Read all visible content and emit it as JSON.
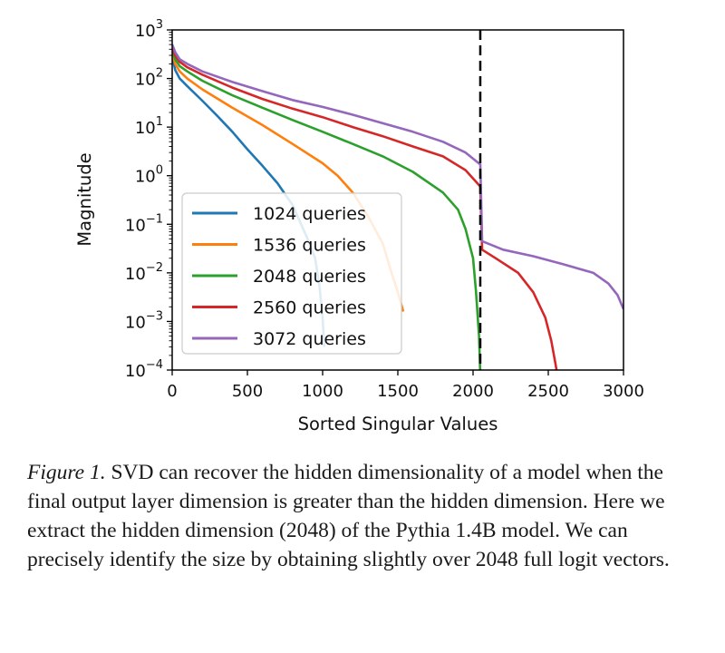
{
  "chart_data": {
    "type": "line",
    "xlabel": "Sorted Singular Values",
    "ylabel": "Magnitude",
    "yscale": "log",
    "xlim": [
      0,
      3000
    ],
    "ylim": [
      0.0001,
      1000
    ],
    "xticks": [
      "0",
      "500",
      "1000",
      "1500",
      "2000",
      "2500",
      "3000"
    ],
    "xtick_values": [
      0,
      500,
      1000,
      1500,
      2000,
      2500,
      3000
    ],
    "ytick_exponents": [
      3,
      2,
      1,
      0,
      -1,
      -2,
      -3,
      -4
    ],
    "grid": false,
    "legend_position": "lower-left",
    "vline": {
      "x": 2048,
      "style": "dashed",
      "color": "#000000"
    },
    "series": [
      {
        "name": "1024 queries",
        "color": "#1f77b4",
        "points": [
          [
            0,
            300
          ],
          [
            20,
            150
          ],
          [
            50,
            100
          ],
          [
            100,
            70
          ],
          [
            200,
            35
          ],
          [
            300,
            17
          ],
          [
            400,
            8
          ],
          [
            500,
            3.5
          ],
          [
            600,
            1.6
          ],
          [
            700,
            0.7
          ],
          [
            800,
            0.25
          ],
          [
            900,
            0.05
          ],
          [
            950,
            0.02
          ],
          [
            980,
            0.005
          ],
          [
            1000,
            0.0012
          ],
          [
            1010,
            0.0003
          ]
        ]
      },
      {
        "name": "1536 queries",
        "color": "#ff7f0e",
        "points": [
          [
            0,
            350
          ],
          [
            20,
            200
          ],
          [
            50,
            140
          ],
          [
            100,
            100
          ],
          [
            200,
            60
          ],
          [
            400,
            25
          ],
          [
            600,
            11
          ],
          [
            800,
            4.5
          ],
          [
            1000,
            1.8
          ],
          [
            1100,
            1.0
          ],
          [
            1200,
            0.45
          ],
          [
            1300,
            0.15
          ],
          [
            1400,
            0.04
          ],
          [
            1450,
            0.012
          ],
          [
            1500,
            0.004
          ],
          [
            1536,
            0.0016
          ]
        ]
      },
      {
        "name": "2048 queries",
        "color": "#2ca02c",
        "points": [
          [
            0,
            400
          ],
          [
            20,
            250
          ],
          [
            50,
            180
          ],
          [
            100,
            140
          ],
          [
            200,
            90
          ],
          [
            400,
            45
          ],
          [
            600,
            25
          ],
          [
            800,
            14
          ],
          [
            1000,
            8
          ],
          [
            1200,
            4.5
          ],
          [
            1400,
            2.5
          ],
          [
            1600,
            1.2
          ],
          [
            1800,
            0.45
          ],
          [
            1900,
            0.2
          ],
          [
            1950,
            0.08
          ],
          [
            2000,
            0.02
          ],
          [
            2020,
            0.004
          ],
          [
            2040,
            0.0005
          ],
          [
            2047,
            0.0001
          ]
        ]
      },
      {
        "name": "2560 queries",
        "color": "#d62728",
        "points": [
          [
            0,
            450
          ],
          [
            20,
            300
          ],
          [
            50,
            220
          ],
          [
            100,
            170
          ],
          [
            200,
            120
          ],
          [
            400,
            65
          ],
          [
            600,
            38
          ],
          [
            800,
            24
          ],
          [
            1000,
            16
          ],
          [
            1200,
            10
          ],
          [
            1400,
            6.5
          ],
          [
            1600,
            4
          ],
          [
            1800,
            2.5
          ],
          [
            1950,
            1.3
          ],
          [
            2048,
            0.6
          ],
          [
            2060,
            0.03
          ],
          [
            2150,
            0.02
          ],
          [
            2300,
            0.01
          ],
          [
            2400,
            0.004
          ],
          [
            2480,
            0.0012
          ],
          [
            2520,
            0.0004
          ],
          [
            2545,
            0.00015
          ],
          [
            2555,
            0.0001
          ]
        ]
      },
      {
        "name": "3072 queries",
        "color": "#9467bd",
        "points": [
          [
            0,
            500
          ],
          [
            20,
            350
          ],
          [
            50,
            250
          ],
          [
            100,
            200
          ],
          [
            200,
            140
          ],
          [
            400,
            85
          ],
          [
            600,
            55
          ],
          [
            800,
            36
          ],
          [
            1000,
            26
          ],
          [
            1200,
            18
          ],
          [
            1400,
            12
          ],
          [
            1600,
            8
          ],
          [
            1800,
            5
          ],
          [
            1950,
            3
          ],
          [
            2048,
            1.7
          ],
          [
            2060,
            0.045
          ],
          [
            2200,
            0.03
          ],
          [
            2400,
            0.022
          ],
          [
            2600,
            0.015
          ],
          [
            2800,
            0.01
          ],
          [
            2900,
            0.006
          ],
          [
            2960,
            0.0035
          ],
          [
            3000,
            0.0018
          ]
        ]
      }
    ]
  },
  "caption": {
    "label": "Figure 1.",
    "text": " SVD can recover the hidden dimensionality of a model when the final output layer dimension is greater than the hidden dimension. Here we extract the hidden dimension (2048) of the Pythia 1.4B model. We can precisely identify the size by obtaining slightly over 2048 full logit vectors."
  }
}
